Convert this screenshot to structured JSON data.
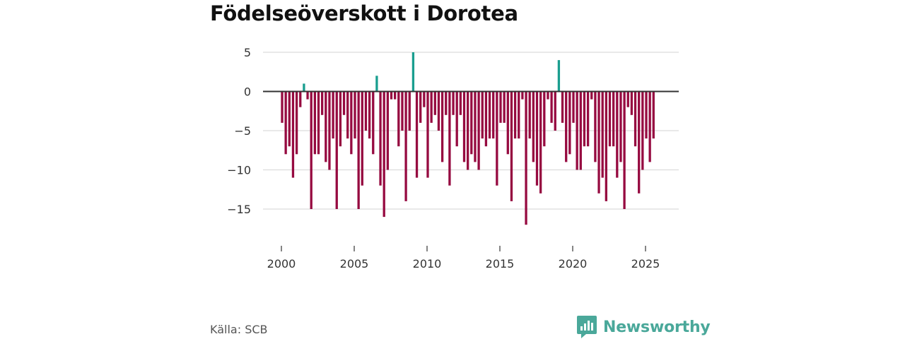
{
  "colors": {
    "positive": "#1a9e8f",
    "negative": "#960a40",
    "grid": "#dcdcdc",
    "zero": "#333333",
    "brand": "#4aa89a"
  },
  "footer": {
    "source": "Källa: SCB",
    "brand": "Newsworthy",
    "brand_icon": "newsworthy-logo-icon"
  },
  "chart_data": {
    "type": "bar",
    "title": "Födelseöverskott i Dorotea",
    "xlabel": "",
    "ylabel": "",
    "ylim": [
      -18,
      5
    ],
    "yticks": [
      5,
      0,
      -5,
      -10,
      -15
    ],
    "ytick_labels": [
      "5",
      "0",
      "−5",
      "−10",
      "−15"
    ],
    "xlim": [
      2000,
      2026
    ],
    "xticks": [
      2000,
      2005,
      2010,
      2015,
      2020,
      2025
    ],
    "xtick_labels": [
      "2000",
      "2005",
      "2010",
      "2015",
      "2020",
      "2025"
    ],
    "series": [
      {
        "name": "Födelseöverskott",
        "start": 2000,
        "step": 0.25,
        "values": [
          -4,
          -8,
          -7,
          -11,
          -8,
          -2,
          1,
          -1,
          -15,
          -8,
          -8,
          -3,
          -9,
          -10,
          -6,
          -15,
          -7,
          -3,
          -6,
          -8,
          -6,
          -15,
          -12,
          -5,
          -6,
          -8,
          2,
          -12,
          -16,
          -10,
          -1,
          -1,
          -7,
          -5,
          -14,
          -5,
          5,
          -11,
          -4,
          -2,
          -11,
          -4,
          -3,
          -5,
          -9,
          -3,
          -12,
          -3,
          -7,
          -3,
          -9,
          -10,
          -8,
          -9,
          -10,
          -6,
          -7,
          -6,
          -6,
          -12,
          -4,
          -4,
          -8,
          -14,
          -6,
          -6,
          -1,
          -17,
          -6,
          -9,
          -12,
          -13,
          -7,
          -1,
          -4,
          -5,
          4,
          -4,
          -9,
          -8,
          -4,
          -10,
          -10,
          -7,
          -7,
          -1,
          -9,
          -13,
          -11,
          -14,
          -7,
          -7,
          -11,
          -9,
          -15,
          -2,
          -3,
          -7,
          -13,
          -10,
          -6,
          -9,
          -6
        ]
      }
    ]
  }
}
